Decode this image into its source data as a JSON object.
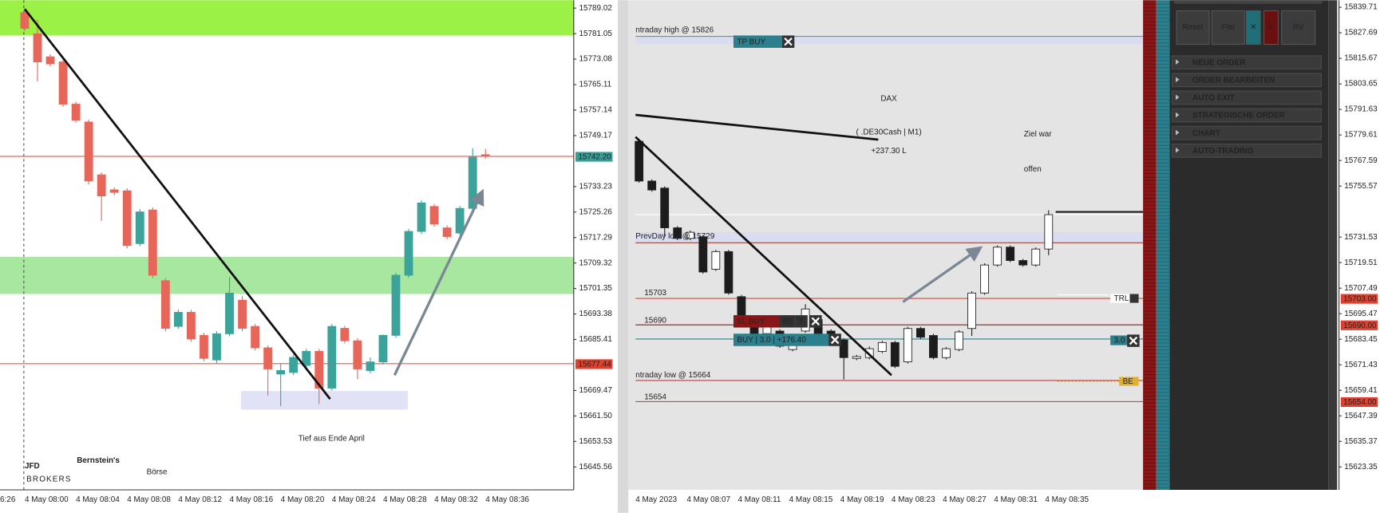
{
  "left_chart": {
    "y_axis_labels": [
      15789.02,
      15781.05,
      15773.08,
      15765.11,
      15757.14,
      15749.17,
      15733.23,
      15725.26,
      15717.29,
      15709.32,
      15701.35,
      15693.38,
      15685.41,
      15669.47,
      {
        "value": 15661.5,
        "label": "15661.50"
      },
      15653.53,
      15645.56
    ],
    "x_axis_labels": [
      "6:26",
      "4 May 08:00",
      "4 May 08:04",
      "4 May 08:08",
      "4 May 08:12",
      "4 May 08:16",
      "4 May 08:20",
      "4 May 08:24",
      "4 May 08:28",
      "4 May 08:32",
      "4 May 08:36"
    ],
    "price_tags": [
      "15742.20",
      "15677.44"
    ],
    "annotation": "Tief aus Ende April",
    "logo": {
      "jfd": "JFD",
      "brokers": "BROKERS",
      "bernsteins": "Bernstein's",
      "boerse": "Börse"
    },
    "candles": [
      {
        "open": 15787.6,
        "high": 15788.7,
        "low": 15781.8,
        "close": 15782.7
      },
      {
        "open": 15781.0,
        "high": 15785.4,
        "low": 15766.1,
        "close": 15772.2
      },
      {
        "open": 15773.8,
        "high": 15774.6,
        "low": 15770.8,
        "close": 15771.6
      },
      {
        "open": 15772.2,
        "high": 15773.0,
        "low": 15758.2,
        "close": 15759.0
      },
      {
        "open": 15759.0,
        "high": 15759.8,
        "low": 15753.2,
        "close": 15754.0
      },
      {
        "open": 15753.4,
        "high": 15754.2,
        "low": 15733.9,
        "close": 15735.0
      },
      {
        "open": 15736.9,
        "high": 15737.7,
        "low": 15722.5,
        "close": 15730.3
      },
      {
        "open": 15732.2,
        "high": 15733.0,
        "low": 15730.5,
        "close": 15731.4
      },
      {
        "open": 15731.9,
        "high": 15732.7,
        "low": 15713.9,
        "close": 15714.8
      },
      {
        "open": 15715.4,
        "high": 15726.2,
        "low": 15714.6,
        "close": 15725.3
      },
      {
        "open": 15725.9,
        "high": 15726.7,
        "low": 15704.6,
        "close": 15705.5
      },
      {
        "open": 15703.8,
        "high": 15704.6,
        "low": 15687.9,
        "close": 15688.9
      },
      {
        "open": 15689.5,
        "high": 15694.8,
        "low": 15688.7,
        "close": 15693.9
      },
      {
        "open": 15693.9,
        "high": 15694.7,
        "low": 15684.7,
        "close": 15685.6
      },
      {
        "open": 15686.7,
        "high": 15687.5,
        "low": 15678.6,
        "close": 15679.5
      },
      {
        "open": 15679.0,
        "high": 15688.0,
        "low": 15678.0,
        "close": 15687.2
      },
      {
        "open": 15687.2,
        "high": 15705.0,
        "low": 15686.4,
        "close": 15699.9
      },
      {
        "open": 15697.7,
        "high": 15699.0,
        "low": 15688.0,
        "close": 15688.9
      },
      {
        "open": 15689.5,
        "high": 15690.3,
        "low": 15682.0,
        "close": 15682.8
      },
      {
        "open": 15682.8,
        "high": 15683.6,
        "low": 15667.9,
        "close": 15676.2
      },
      {
        "open": 15674.6,
        "high": 15678.0,
        "low": 15664.6,
        "close": 15675.7
      },
      {
        "open": 15675.1,
        "high": 15680.6,
        "low": 15674.3,
        "close": 15679.8
      },
      {
        "open": 15677.3,
        "high": 15682.5,
        "low": 15676.5,
        "close": 15681.7
      },
      {
        "open": 15681.7,
        "high": 15682.5,
        "low": 15665.2,
        "close": 15670.2
      },
      {
        "open": 15670.2,
        "high": 15690.3,
        "low": 15669.4,
        "close": 15689.5
      },
      {
        "open": 15688.9,
        "high": 15689.7,
        "low": 15684.2,
        "close": 15685.0
      },
      {
        "open": 15685.0,
        "high": 15685.8,
        "low": 15673.0,
        "close": 15676.2
      },
      {
        "open": 15675.7,
        "high": 15679.8,
        "low": 15674.9,
        "close": 15678.4
      },
      {
        "open": 15678.4,
        "high": 15687.0,
        "low": 15677.6,
        "close": 15686.7
      },
      {
        "open": 15686.7,
        "high": 15706.3,
        "low": 15685.9,
        "close": 15705.5
      },
      {
        "open": 15705.5,
        "high": 15720.0,
        "low": 15704.7,
        "close": 15719.2
      },
      {
        "open": 15719.2,
        "high": 15728.9,
        "low": 15718.4,
        "close": 15728.1
      },
      {
        "open": 15727.0,
        "high": 15727.8,
        "low": 15720.7,
        "close": 15721.5
      },
      {
        "open": 15720.3,
        "high": 15721.1,
        "low": 15716.8,
        "close": 15717.6
      },
      {
        "open": 15718.7,
        "high": 15727.2,
        "low": 15717.9,
        "close": 15726.4
      },
      {
        "open": 15726.4,
        "high": 15745.2,
        "low": 15725.6,
        "close": 15742.4
      },
      {
        "open": 15743.2,
        "high": 15745.0,
        "low": 15742.0,
        "close": 15742.7
      }
    ]
  },
  "right_chart": {
    "y_axis_labels": [
      15839.71,
      15827.69,
      15815.67,
      15803.65,
      15791.63,
      15779.61,
      15767.59,
      15755.57,
      15731.53,
      15719.51,
      15707.49,
      15695.47,
      15683.45,
      15671.43,
      15659.41,
      15647.39,
      15635.37,
      15623.35
    ],
    "x_axis_labels": [
      "4 May 2023",
      "4 May 08:07",
      "4 May 08:11",
      "4 May 08:15",
      "4 May 08:19",
      "4 May 08:23",
      "4 May 08:27",
      "4 May 08:31",
      "4 May 08:35"
    ],
    "symbol": "DAX",
    "instrument": "( .DE30Cash | M1)",
    "profit": "+237.30 L",
    "annotation": [
      "Ziel war",
      "offen"
    ],
    "levels": {
      "intraday_high": "ntraday high @ 15826",
      "prev_day_low": "PrevDay low @ 15729",
      "level_1": "15703",
      "level_2": "15690",
      "intraday_low": "ntraday low @ 15664",
      "level_3": "15654"
    },
    "orders": {
      "tp": "TP BUY",
      "sl": "SL BUY",
      "sl_be": "BE",
      "sl_t": "T",
      "position": "BUY | 3.0 | +176.40",
      "trl": "TRL",
      "size": "3.0",
      "be": "BE"
    },
    "price_tags": [
      "15703.00",
      "15690.00",
      "15654.00"
    ],
    "candles": [
      {
        "open": 15776.6,
        "high": 15777.4,
        "low": 15757.1,
        "close": 15757.9
      },
      {
        "open": 15757.9,
        "high": 15758.7,
        "low": 15752.9,
        "close": 15753.7
      },
      {
        "open": 15754.6,
        "high": 15755.4,
        "low": 15731.7,
        "close": 15735.9
      },
      {
        "open": 15735.9,
        "high": 15736.7,
        "low": 15730.1,
        "close": 15730.9
      },
      {
        "open": 15730.9,
        "high": 15734.6,
        "low": 15730.1,
        "close": 15733.8
      },
      {
        "open": 15731.7,
        "high": 15732.5,
        "low": 15714.3,
        "close": 15715.1
      },
      {
        "open": 15716.4,
        "high": 15725.5,
        "low": 15715.6,
        "close": 15724.7
      },
      {
        "open": 15724.7,
        "high": 15725.5,
        "low": 15704.4,
        "close": 15705.2
      },
      {
        "open": 15703.5,
        "high": 15704.3,
        "low": 15689.4,
        "close": 15690.2
      },
      {
        "open": 15693.5,
        "high": 15694.3,
        "low": 15685.3,
        "close": 15686.1
      },
      {
        "open": 15686.1,
        "high": 15691.0,
        "low": 15685.3,
        "close": 15690.2
      },
      {
        "open": 15687.3,
        "high": 15688.1,
        "low": 15679.4,
        "close": 15680.2
      },
      {
        "open": 15678.6,
        "high": 15686.0,
        "low": 15677.8,
        "close": 15685.2
      },
      {
        "open": 15687.3,
        "high": 15700.0,
        "low": 15686.5,
        "close": 15697.7
      },
      {
        "open": 15692.7,
        "high": 15693.5,
        "low": 15684.4,
        "close": 15685.2
      },
      {
        "open": 15687.3,
        "high": 15688.1,
        "low": 15680.3,
        "close": 15681.1
      },
      {
        "open": 15683.1,
        "high": 15683.9,
        "low": 15664.5,
        "close": 15674.8
      },
      {
        "open": 15674.4,
        "high": 15676.1,
        "low": 15673.6,
        "close": 15675.3
      },
      {
        "open": 15674.8,
        "high": 15680.0,
        "low": 15674.0,
        "close": 15679.0
      },
      {
        "open": 15677.7,
        "high": 15682.7,
        "low": 15676.9,
        "close": 15681.9
      },
      {
        "open": 15681.9,
        "high": 15682.7,
        "low": 15669.9,
        "close": 15670.7
      },
      {
        "open": 15672.8,
        "high": 15689.3,
        "low": 15672.0,
        "close": 15688.5
      },
      {
        "open": 15688.5,
        "high": 15689.3,
        "low": 15683.6,
        "close": 15684.4
      },
      {
        "open": 15685.2,
        "high": 15686.0,
        "low": 15674.0,
        "close": 15674.8
      },
      {
        "open": 15674.8,
        "high": 15679.8,
        "low": 15674.0,
        "close": 15679.0
      },
      {
        "open": 15678.6,
        "high": 15687.7,
        "low": 15677.8,
        "close": 15686.9
      },
      {
        "open": 15688.5,
        "high": 15706.0,
        "low": 15685.0,
        "close": 15705.2
      },
      {
        "open": 15705.2,
        "high": 15719.2,
        "low": 15704.4,
        "close": 15718.4
      },
      {
        "open": 15718.4,
        "high": 15727.6,
        "low": 15717.6,
        "close": 15726.8
      },
      {
        "open": 15726.8,
        "high": 15727.6,
        "low": 15719.7,
        "close": 15720.5
      },
      {
        "open": 15720.5,
        "high": 15721.3,
        "low": 15717.6,
        "close": 15718.4
      },
      {
        "open": 15718.4,
        "high": 15726.7,
        "low": 15717.6,
        "close": 15725.9
      },
      {
        "open": 15725.9,
        "high": 15744.2,
        "low": 15723.0,
        "close": 15742.1
      }
    ]
  },
  "trade_panel": {
    "buttons": [
      "Reset",
      "Flat",
      "✕",
      "✕",
      "RV"
    ],
    "menu": [
      "NEUE ORDER",
      "ORDER BEARBEITEN",
      "AUTO EXIT",
      "STRATEGISCHE ORDER",
      "CHART",
      "AUTO-TRADING"
    ]
  }
}
